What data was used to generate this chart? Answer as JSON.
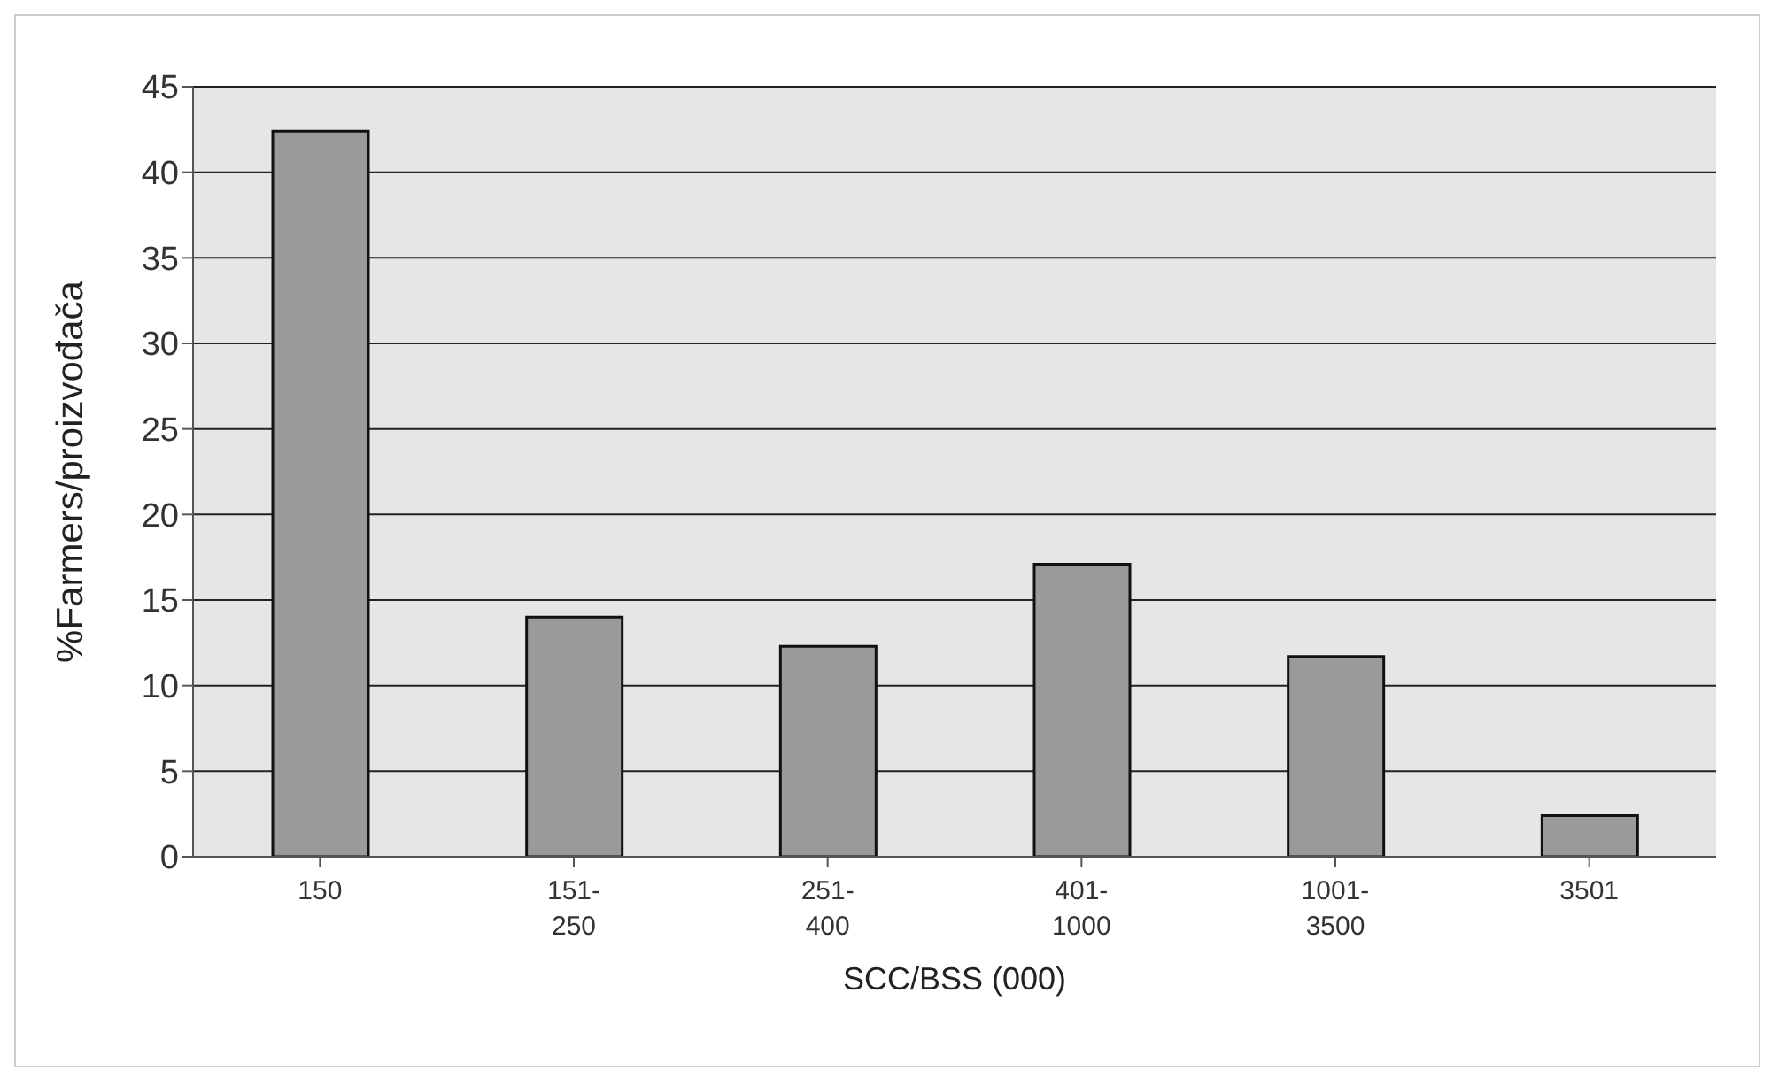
{
  "chart_data": {
    "type": "bar",
    "xlabel": "SCC/BSS (000)",
    "ylabel": "%Farmers/proizvođača",
    "categories": [
      "150",
      "151-250",
      "251-400",
      "401-1000",
      "1001-3500",
      "3501"
    ],
    "values": [
      42.4,
      14.0,
      12.3,
      17.1,
      11.7,
      2.4
    ],
    "color": "#9a9a9a",
    "ylim": [
      0,
      45
    ],
    "yticks": [
      0,
      5,
      10,
      15,
      20,
      25,
      30,
      35,
      40,
      45
    ],
    "grid": "y",
    "legend": false
  }
}
